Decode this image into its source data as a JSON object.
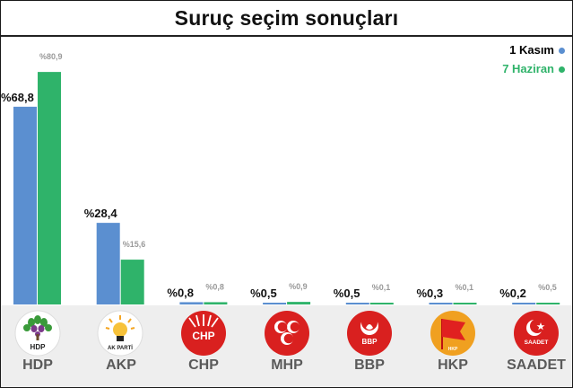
{
  "chart_data": {
    "type": "bar",
    "title": "Suruç seçim sonuçları",
    "categories": [
      "HDP",
      "AKP",
      "CHP",
      "MHP",
      "BBP",
      "HKP",
      "SAADET"
    ],
    "series": [
      {
        "name": "1 Kasım",
        "color": "#5b8fd0",
        "values": [
          68.8,
          28.4,
          0.8,
          0.5,
          0.5,
          0.3,
          0.2
        ],
        "labels": [
          "%68,8",
          "%28,4",
          "%0,8",
          "%0,5",
          "%0,5",
          "%0,3",
          "%0,2"
        ]
      },
      {
        "name": "7 Haziran",
        "color": "#2fb36a",
        "values": [
          80.9,
          15.6,
          0.8,
          0.9,
          0.1,
          0.1,
          0.5
        ],
        "labels": [
          "%80,9",
          "%15,6",
          "%0,8",
          "%0,9",
          "%0,1",
          "%0,1",
          "%0,5"
        ]
      }
    ],
    "legend_position": "top-right",
    "ylim": [
      0,
      85
    ],
    "grid": false
  },
  "logos": [
    {
      "party": "HDP",
      "icon": "hdp-tree-logo",
      "text": "HDP"
    },
    {
      "party": "AKP",
      "icon": "akp-lightbulb-logo",
      "text": "AK PARTİ"
    },
    {
      "party": "CHP",
      "icon": "chp-six-arrows-logo",
      "text": "CHP"
    },
    {
      "party": "MHP",
      "icon": "mhp-three-crescents-logo",
      "text": ""
    },
    {
      "party": "BBP",
      "icon": "bbp-crescent-rose-logo",
      "text": "BBP"
    },
    {
      "party": "HKP",
      "icon": "hkp-red-flag-logo",
      "text": "HKP"
    },
    {
      "party": "SAADET",
      "icon": "saadet-crescent-star-logo",
      "text": "SAADET"
    }
  ]
}
